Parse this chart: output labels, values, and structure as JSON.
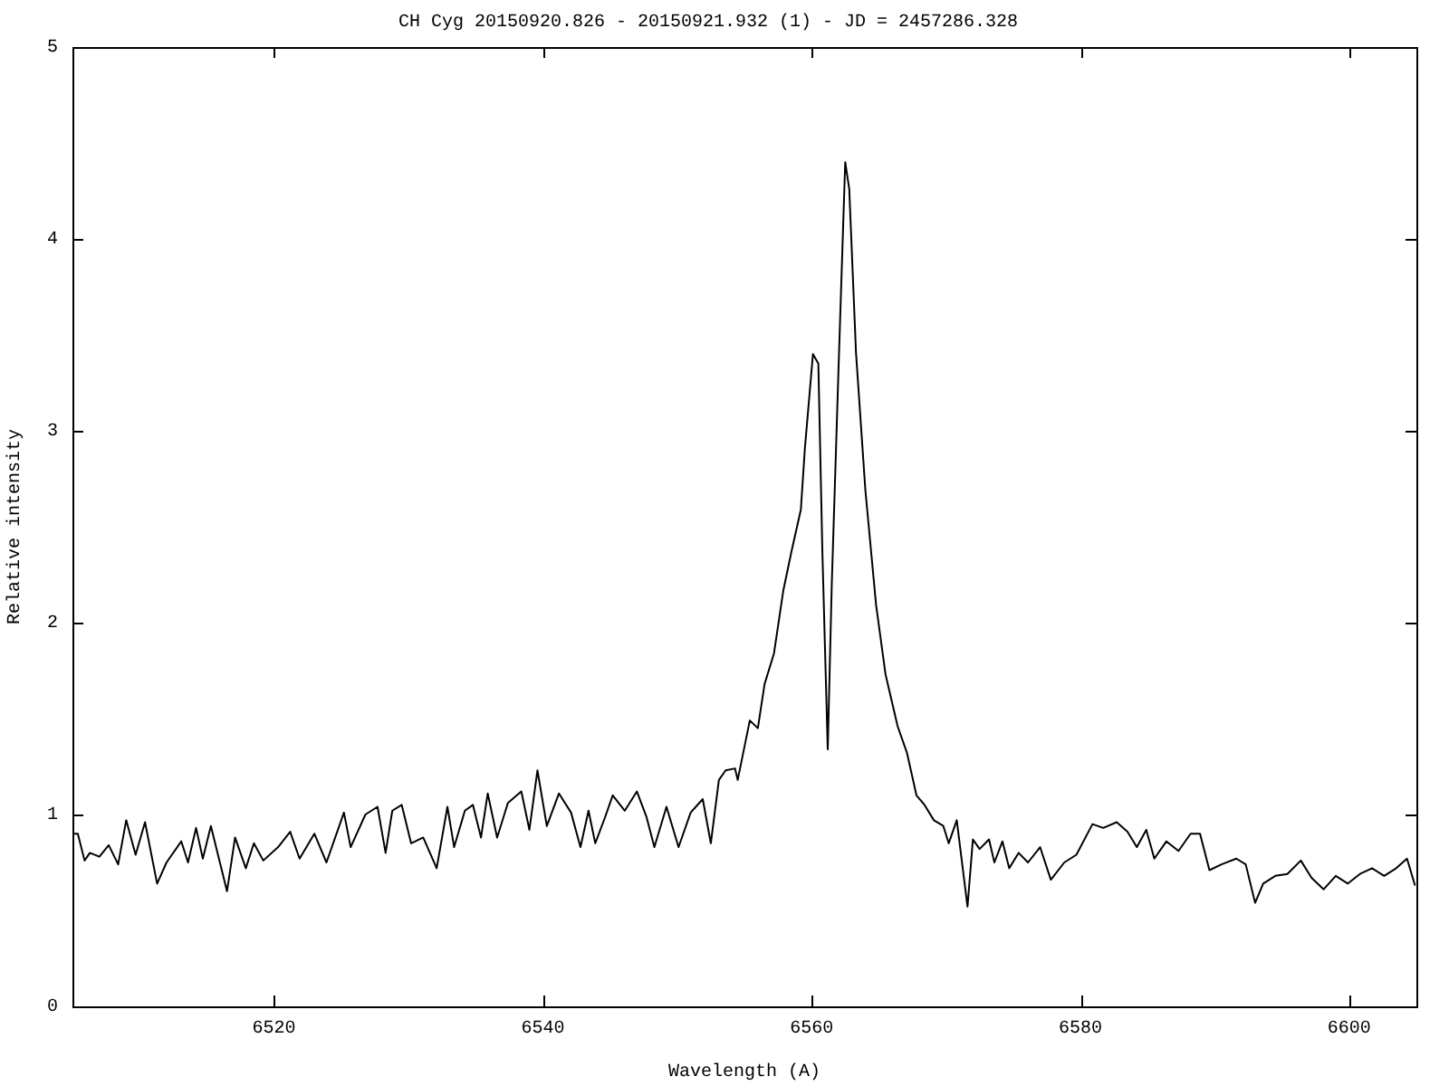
{
  "chart_data": {
    "type": "line",
    "title": "CH Cyg 20150920.826 - 20150921.932 (1) - JD = 2457286.328",
    "xlabel": "Wavelength (A)",
    "ylabel": "Relative intensity",
    "xlim": [
      6505,
      6605
    ],
    "xticks": [
      6520,
      6540,
      6560,
      6580,
      6600
    ],
    "ylim": [
      0,
      5
    ],
    "yticks": [
      0,
      1,
      2,
      3,
      4,
      5
    ],
    "grid": false,
    "legend": false,
    "marker": "none",
    "line_style": "solid",
    "series": [
      {
        "color": "#000000",
        "x": [
          6505.1,
          6505.4,
          6505.9,
          6506.3,
          6507.0,
          6507.7,
          6508.4,
          6509.0,
          6509.7,
          6510.4,
          6511.3,
          6512.0,
          6513.1,
          6513.6,
          6514.2,
          6514.7,
          6515.3,
          6516.5,
          6517.1,
          6517.9,
          6518.5,
          6519.2,
          6520.3,
          6521.2,
          6521.9,
          6523.0,
          6523.9,
          6525.2,
          6525.7,
          6526.8,
          6527.7,
          6528.3,
          6528.8,
          6529.5,
          6530.2,
          6531.1,
          6532.1,
          6532.9,
          6533.4,
          6534.2,
          6534.8,
          6535.4,
          6535.9,
          6536.6,
          6537.4,
          6538.4,
          6539.0,
          6539.6,
          6540.3,
          6541.2,
          6542.1,
          6542.8,
          6543.4,
          6543.9,
          6544.6,
          6545.2,
          6546.1,
          6547.0,
          6547.7,
          6548.3,
          6549.2,
          6550.1,
          6551.0,
          6551.9,
          6552.5,
          6553.1,
          6553.6,
          6554.3,
          6554.5,
          6555.4,
          6556.0,
          6556.5,
          6557.2,
          6557.9,
          6558.5,
          6559.2,
          6559.5,
          6560.1,
          6560.5,
          6560.8,
          6561.2,
          6561.5,
          6562.0,
          6562.5,
          6562.8,
          6563.3,
          6564.0,
          6564.8,
          6565.5,
          6566.4,
          6567.1,
          6567.8,
          6568.4,
          6569.1,
          6569.8,
          6570.2,
          6570.8,
          6571.6,
          6572.0,
          6572.5,
          6573.2,
          6573.6,
          6574.2,
          6574.7,
          6575.4,
          6576.1,
          6577.0,
          6577.8,
          6578.8,
          6579.7,
          6580.9,
          6581.7,
          6582.7,
          6583.5,
          6584.2,
          6584.9,
          6585.5,
          6586.4,
          6587.3,
          6588.2,
          6588.9,
          6589.6,
          6590.5,
          6591.6,
          6592.3,
          6593.0,
          6593.6,
          6594.5,
          6595.4,
          6596.4,
          6597.2,
          6598.1,
          6599.0,
          6599.9,
          6600.8,
          6601.7,
          6602.6,
          6603.5,
          6604.3,
          6604.9
        ],
        "values": [
          0.9,
          0.9,
          0.76,
          0.8,
          0.78,
          0.84,
          0.74,
          0.97,
          0.79,
          0.96,
          0.64,
          0.75,
          0.86,
          0.75,
          0.93,
          0.77,
          0.94,
          0.6,
          0.88,
          0.72,
          0.85,
          0.76,
          0.83,
          0.91,
          0.77,
          0.9,
          0.75,
          1.01,
          0.83,
          1.0,
          1.04,
          0.8,
          1.02,
          1.05,
          0.85,
          0.88,
          0.72,
          1.04,
          0.83,
          1.02,
          1.05,
          0.88,
          1.11,
          0.88,
          1.06,
          1.12,
          0.92,
          1.23,
          0.94,
          1.11,
          1.01,
          0.83,
          1.02,
          0.85,
          0.98,
          1.1,
          1.02,
          1.12,
          0.99,
          0.83,
          1.04,
          0.83,
          1.01,
          1.08,
          0.85,
          1.18,
          1.23,
          1.24,
          1.18,
          1.49,
          1.45,
          1.68,
          1.84,
          2.17,
          2.37,
          2.59,
          2.91,
          3.4,
          3.35,
          2.37,
          1.34,
          2.2,
          3.32,
          4.4,
          4.26,
          3.41,
          2.69,
          2.09,
          1.73,
          1.46,
          1.32,
          1.1,
          1.05,
          0.97,
          0.94,
          0.85,
          0.97,
          0.52,
          0.87,
          0.82,
          0.87,
          0.75,
          0.86,
          0.72,
          0.8,
          0.75,
          0.83,
          0.66,
          0.75,
          0.79,
          0.95,
          0.93,
          0.96,
          0.91,
          0.83,
          0.92,
          0.77,
          0.86,
          0.81,
          0.9,
          0.9,
          0.71,
          0.74,
          0.77,
          0.74,
          0.54,
          0.64,
          0.68,
          0.69,
          0.76,
          0.67,
          0.61,
          0.68,
          0.64,
          0.69,
          0.72,
          0.68,
          0.72,
          0.77,
          0.63
        ]
      }
    ]
  }
}
